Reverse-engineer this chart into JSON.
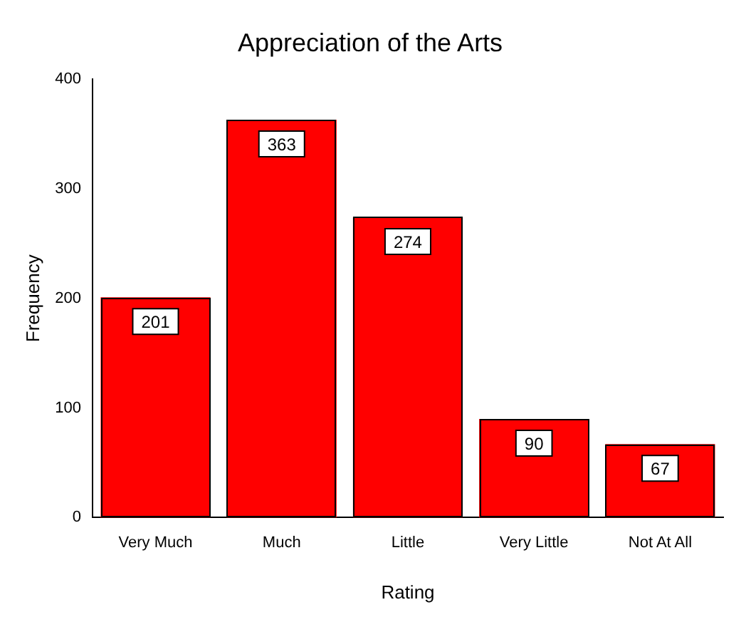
{
  "chart_data": {
    "type": "bar",
    "title": "Appreciation of the Arts",
    "xlabel": "Rating",
    "ylabel": "Frequency",
    "categories": [
      "Very Much",
      "Much",
      "Little",
      "Very Little",
      "Not At All"
    ],
    "values": [
      201,
      363,
      274,
      90,
      67
    ],
    "color": "#ff0000",
    "ylim": [
      0,
      400
    ],
    "yticks": [
      0,
      100,
      200,
      300,
      400
    ],
    "grid": false,
    "legend": false,
    "data_labels": true
  }
}
